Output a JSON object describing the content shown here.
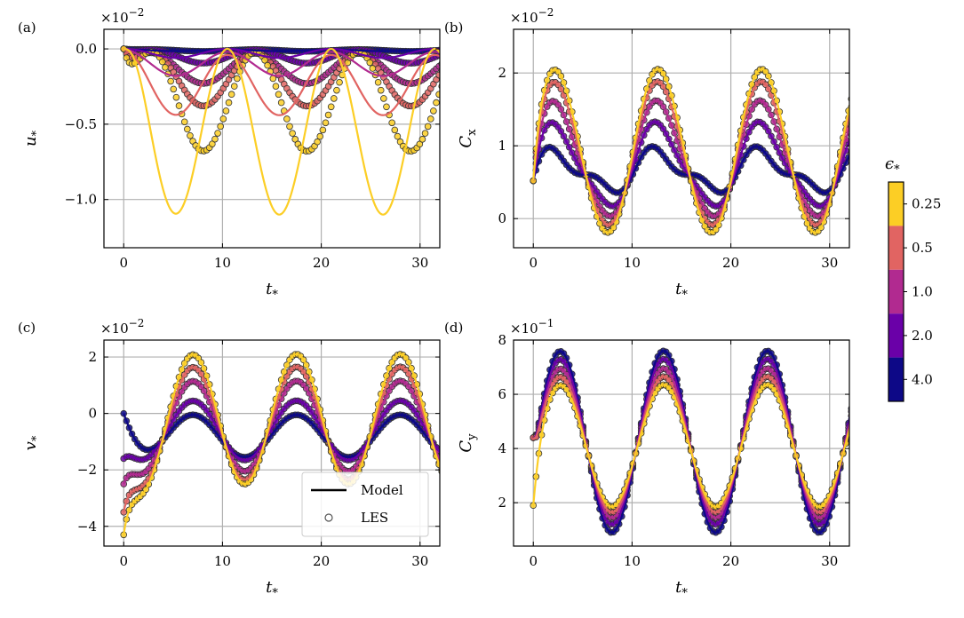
{
  "chart_data": [
    {
      "id": "u",
      "type": "line",
      "panel_label": "(a)",
      "xlabel": "t",
      "xlabel_sub": "*",
      "ylabel": "u",
      "ylabel_sub": "*",
      "scale_label": "×10",
      "scale_exp": "−2",
      "xlim": [
        -2,
        32
      ],
      "ylim": [
        -1.32,
        0.13
      ],
      "xticks": [
        0,
        10,
        20,
        30
      ],
      "xtick_labels": [
        "0",
        "10",
        "20",
        "30"
      ],
      "yticks": [
        0.0,
        -0.5,
        -1.0
      ],
      "ytick_labels": [
        "0.0",
        "−0.5",
        "−1.0"
      ],
      "grid": true,
      "model": {
        "period": 10.5,
        "phase": 2.5,
        "shape": "transient"
      },
      "series": [
        {
          "epsilon": "4.0",
          "color": "#0d0887",
          "initial": 0.0,
          "mean": -0.01,
          "amp": 0.005,
          "bias": 0.0,
          "damp": 6
        },
        {
          "epsilon": "2.0",
          "color": "#6a00a8",
          "initial": 0.0,
          "mean": -0.03,
          "amp": 0.03,
          "bias": 0.0,
          "damp": 5
        },
        {
          "epsilon": "1.0",
          "color": "#b12a90",
          "initial": 0.0,
          "mean": -0.1,
          "amp": 0.08,
          "bias": 0.0,
          "damp": 4
        },
        {
          "epsilon": "0.5",
          "color": "#e16462",
          "initial": 0.0,
          "mean": -0.24,
          "amp": 0.2,
          "bias": 0.0,
          "damp": 4
        },
        {
          "epsilon": "0.25",
          "color": "#fcce25",
          "initial": 0.0,
          "mean": -0.55,
          "amp": 0.55,
          "bias": 0.0,
          "damp": 3
        }
      ],
      "les": [
        {
          "epsilon": "4.0",
          "color": "#0d0887",
          "mean": -0.01,
          "amp": 0.006
        },
        {
          "epsilon": "2.0",
          "color": "#6a00a8",
          "mean": -0.05,
          "amp": 0.045
        },
        {
          "epsilon": "1.0",
          "color": "#b12a90",
          "mean": -0.13,
          "amp": 0.1
        },
        {
          "epsilon": "0.5",
          "color": "#e16462",
          "mean": -0.2,
          "amp": 0.18
        },
        {
          "epsilon": "0.25",
          "color": "#fcce25",
          "mean": -0.35,
          "amp": 0.33
        }
      ]
    },
    {
      "id": "cx",
      "type": "line",
      "panel_label": "(b)",
      "xlabel": "t",
      "xlabel_sub": "*",
      "ylabel": "C",
      "ylabel_sub": "x",
      "scale_label": "×10",
      "scale_exp": "−2",
      "xlim": [
        -2,
        32
      ],
      "ylim": [
        -0.4,
        2.6
      ],
      "xticks": [
        0,
        10,
        20,
        30
      ],
      "xtick_labels": [
        "0",
        "10",
        "20",
        "30"
      ],
      "yticks": [
        0,
        1,
        2
      ],
      "ytick_labels": [
        "0",
        "1",
        "2"
      ],
      "grid": true,
      "series": [
        {
          "epsilon": "4.0",
          "color": "#0d0887",
          "initial": 0.52,
          "mean": 0.65,
          "amp": 0.25,
          "amp2": 0.12
        },
        {
          "epsilon": "2.0",
          "color": "#6a00a8",
          "initial": 0.52,
          "mean": 0.72,
          "amp": 0.55,
          "amp2": 0.1
        },
        {
          "epsilon": "1.0",
          "color": "#b12a90",
          "initial": 0.52,
          "mean": 0.8,
          "amp": 0.78,
          "amp2": 0.08
        },
        {
          "epsilon": "0.5",
          "color": "#e16462",
          "initial": 0.52,
          "mean": 0.88,
          "amp": 0.98,
          "amp2": 0.05
        },
        {
          "epsilon": "0.25",
          "color": "#fcce25",
          "initial": 0.52,
          "mean": 0.92,
          "amp": 1.12,
          "amp2": 0.03
        }
      ]
    },
    {
      "id": "v",
      "type": "line",
      "panel_label": "(c)",
      "xlabel": "t",
      "xlabel_sub": "*",
      "ylabel": "v",
      "ylabel_sub": "*",
      "scale_label": "×10",
      "scale_exp": "−2",
      "xlim": [
        -2,
        32
      ],
      "ylim": [
        -4.7,
        2.6
      ],
      "xticks": [
        0,
        10,
        20,
        30
      ],
      "xtick_labels": [
        "0",
        "10",
        "20",
        "30"
      ],
      "yticks": [
        2,
        0,
        -2,
        -4
      ],
      "ytick_labels": [
        "2",
        "0",
        "−2",
        "−4"
      ],
      "grid": true,
      "series": [
        {
          "epsilon": "4.0",
          "color": "#0d0887",
          "initial": 0.0,
          "mean": -0.8,
          "amp": 0.75
        },
        {
          "epsilon": "2.0",
          "color": "#6a00a8",
          "initial": -1.6,
          "mean": -0.6,
          "amp": 1.05
        },
        {
          "epsilon": "1.0",
          "color": "#b12a90",
          "initial": -2.5,
          "mean": -0.45,
          "amp": 1.6
        },
        {
          "epsilon": "0.5",
          "color": "#e16462",
          "initial": -3.5,
          "mean": -0.35,
          "amp": 2.0
        },
        {
          "epsilon": "0.25",
          "color": "#fcce25",
          "initial": -4.3,
          "mean": -0.2,
          "amp": 2.3
        }
      ],
      "legend": {
        "position": "lower-right",
        "entries": [
          "Model",
          "LES"
        ]
      }
    },
    {
      "id": "cy",
      "type": "line",
      "panel_label": "(d)",
      "xlabel": "t",
      "xlabel_sub": "*",
      "ylabel": "C",
      "ylabel_sub": "y",
      "scale_label": "×10",
      "scale_exp": "−1",
      "xlim": [
        -2,
        32
      ],
      "ylim": [
        0.4,
        8.0
      ],
      "xticks": [
        0,
        10,
        20,
        30
      ],
      "xtick_labels": [
        "0",
        "10",
        "20",
        "30"
      ],
      "yticks": [
        2,
        4,
        6,
        8
      ],
      "ytick_labels": [
        "2",
        "4",
        "6",
        "8"
      ],
      "grid": true,
      "series": [
        {
          "epsilon": "4.0",
          "color": "#0d0887",
          "initial": 4.4,
          "mean": 4.25,
          "amp": 3.35
        },
        {
          "epsilon": "2.0",
          "color": "#6a00a8",
          "initial": 4.4,
          "mean": 4.25,
          "amp": 3.05
        },
        {
          "epsilon": "1.0",
          "color": "#b12a90",
          "initial": 4.4,
          "mean": 4.2,
          "amp": 2.75
        },
        {
          "epsilon": "0.5",
          "color": "#e16462",
          "initial": 4.4,
          "mean": 4.15,
          "amp": 2.5
        },
        {
          "epsilon": "0.25",
          "color": "#fcce25",
          "initial": 1.9,
          "mean": 4.1,
          "amp": 2.25
        }
      ]
    }
  ],
  "colorbar": {
    "title": "ϵ",
    "title_sub": "*",
    "entries": [
      {
        "label": "0.25",
        "color": "#fcce25"
      },
      {
        "label": "0.5",
        "color": "#e16462"
      },
      {
        "label": "1.0",
        "color": "#b12a90"
      },
      {
        "label": "2.0",
        "color": "#6a00a8"
      },
      {
        "label": "4.0",
        "color": "#0d0887"
      }
    ]
  }
}
